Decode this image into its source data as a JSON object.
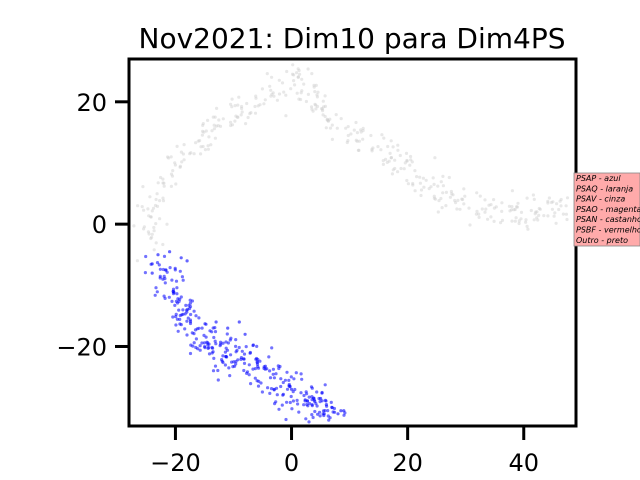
{
  "chart_data": {
    "type": "scatter",
    "title": "Nov2021: Dim10 para Dim4PS",
    "xlabel": "",
    "ylabel": "",
    "xlim": [
      -28,
      49
    ],
    "ylim": [
      -33,
      27
    ],
    "xticks": [
      -20,
      0,
      20,
      40
    ],
    "yticks": [
      -20,
      0,
      20
    ],
    "xtick_labels": [
      "−20",
      "0",
      "20",
      "40"
    ],
    "ytick_labels": [
      "−20",
      "0",
      "20"
    ],
    "grid": false,
    "legend": {
      "placement": "right",
      "entries": [
        "PSAP - azul",
        "PSAQ - laranja",
        "PSAV - cinza",
        "PSAO - magenta",
        "PSAN - castanho",
        "PSBF - vermelho",
        "Outro - preto"
      ],
      "background_color": "#ffaaaa"
    },
    "series": [
      {
        "color": "#0000ff",
        "curve": [
          [
            -22.5,
            -7
          ],
          [
            -20,
            -12
          ],
          [
            -17,
            -17
          ],
          [
            -14,
            -20.5
          ],
          [
            -10,
            -21.5
          ],
          [
            -6,
            -23
          ],
          [
            -2,
            -25.5
          ],
          [
            1,
            -28
          ],
          [
            4,
            -30
          ],
          [
            6.5,
            -31.5
          ]
        ],
        "spread": 1.6,
        "count": 320,
        "extra_points": [
          [
            -23,
            -5
          ],
          [
            -21,
            -4.5
          ],
          [
            -19,
            -5.5
          ],
          [
            -18,
            -6
          ],
          [
            -13,
            -16
          ],
          [
            -11,
            -17
          ],
          [
            -9,
            -16
          ],
          [
            -8,
            -18
          ],
          [
            -3,
            -27
          ],
          [
            0,
            -27
          ],
          [
            4,
            -29
          ],
          [
            5,
            -28.5
          ],
          [
            6,
            -29.5
          ],
          [
            7,
            -30
          ],
          [
            8,
            -31
          ],
          [
            8.5,
            -30.5
          ],
          [
            9,
            -30.5
          ],
          [
            -24,
            -6.5
          ],
          [
            -24,
            -8
          ]
        ]
      },
      {
        "color": "#cccccc",
        "curve": [
          [
            -25,
            -3
          ],
          [
            -24,
            3
          ],
          [
            -21,
            9
          ],
          [
            -17,
            13
          ],
          [
            -12,
            16.5
          ],
          [
            -8,
            19
          ],
          [
            -4,
            21
          ],
          [
            -1,
            23
          ],
          [
            0.5,
            25
          ],
          [
            3,
            20.5
          ],
          [
            8,
            17
          ],
          [
            14,
            13
          ],
          [
            20,
            9
          ],
          [
            26,
            5
          ],
          [
            31,
            2.5
          ],
          [
            37,
            1.5
          ],
          [
            43,
            2
          ],
          [
            48,
            3
          ]
        ],
        "spread": 1.3,
        "count": 380,
        "extra_points": []
      }
    ]
  }
}
